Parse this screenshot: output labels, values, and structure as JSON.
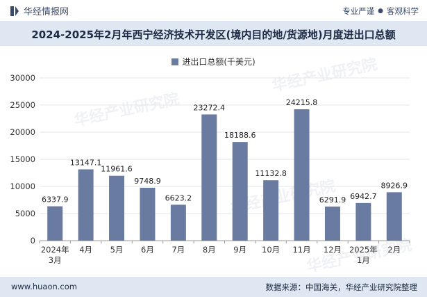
{
  "header": {
    "brand_name": "华经情报网",
    "tag_left": "专业严谨",
    "tag_sep": "●",
    "tag_right": "客观科学"
  },
  "footer": {
    "website": "www.huaon.com",
    "source": "数据来源：中国海关，华经产业研究院整理"
  },
  "watermark": {
    "text": "华经产业研究院"
  },
  "colors": {
    "bar": "#6a7ba2",
    "title_bg": "#dfe7f2",
    "grid": "#e6e6e6"
  },
  "chart_data": {
    "type": "bar",
    "title": "2024-2025年2月年西宁经济技术开发区(境内目的地/货源地)月度进出口总额",
    "legend": "进出口总额(千美元)",
    "categories": [
      "2024年\n3月",
      "4月",
      "5月",
      "6月",
      "7月",
      "8月",
      "9月",
      "10月",
      "11月",
      "12月",
      "2025年\n1月",
      "2月"
    ],
    "series": [
      {
        "name": "进出口总额(千美元)",
        "values": [
          6337.9,
          13147.1,
          11961.6,
          9748.9,
          6623.2,
          23272.4,
          18188.6,
          11132.8,
          24215.8,
          6291.9,
          6942.7,
          8926.9
        ],
        "labels": [
          "6337.9",
          "13147.1",
          "11961.6",
          "9748.9",
          "6623.2",
          "23272.4",
          "18188.6",
          "11132.8",
          "24215.8",
          "6291.9",
          "6942.7",
          "8926.9"
        ]
      }
    ],
    "yticks": [
      "0",
      "5000",
      "10000",
      "15000",
      "20000",
      "25000",
      "30000"
    ],
    "ylim": [
      0,
      30000
    ],
    "xlabel": "",
    "ylabel": ""
  }
}
